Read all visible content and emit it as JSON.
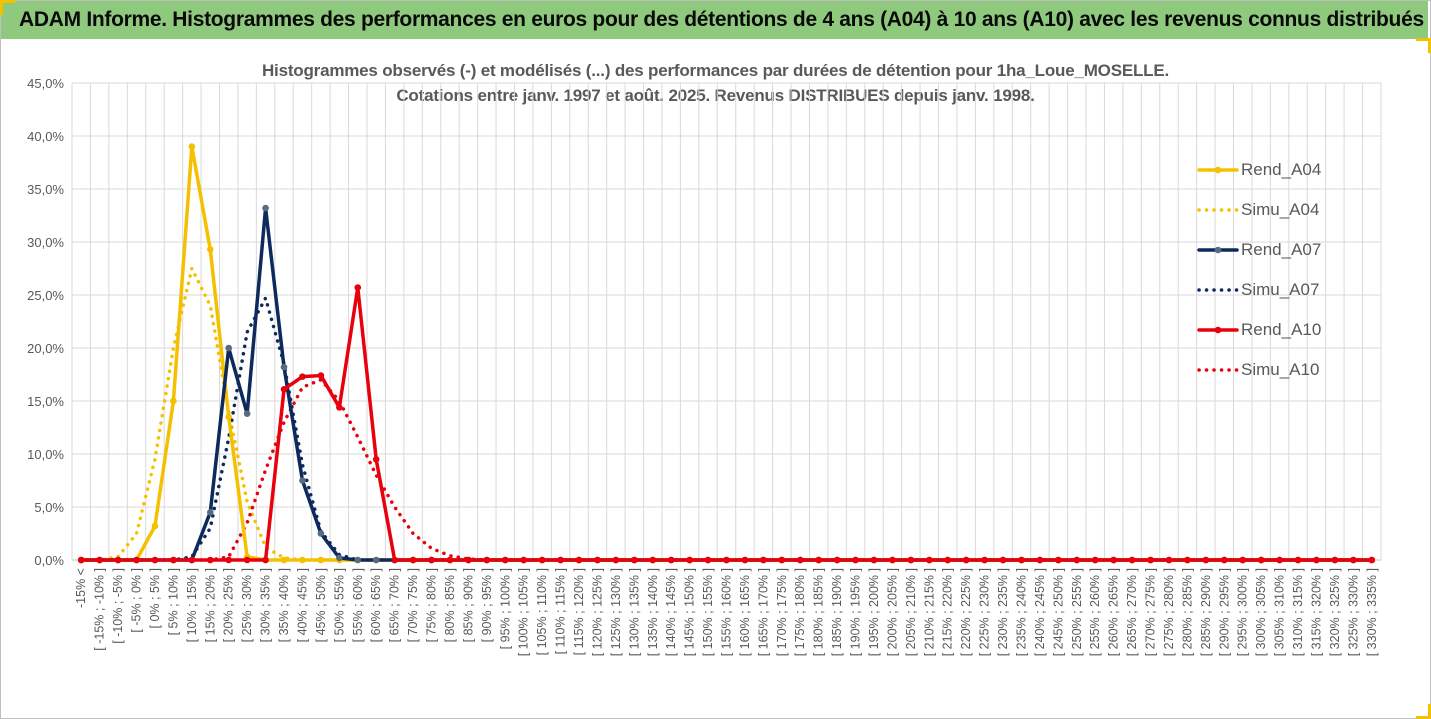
{
  "banner": {
    "title": "ADAM Informe. Histogrammes des performances en euros pour des détentions de 4 ans (A04) à 10 ans (A10) avec les revenus connus distribués"
  },
  "colors": {
    "banner_bg": "#8fc97e",
    "A04": "#f5c000",
    "A07": "#0e2a5c",
    "A10": "#e8000d",
    "A07_marker": "#5a6b80",
    "grid": "#d9d9d9",
    "text": "#595959"
  },
  "chart_data": {
    "type": "line",
    "title_line1": "Histogrammes observés (-) et modélisés (...) des performances par durées de détention pour 1ha_Loue_MOSELLE.",
    "title_line2": "Cotations entre janv. 1997 et août. 2025. Revenus DISTRIBUES depuis janv. 1998.",
    "ylim": [
      0,
      45
    ],
    "yticks": [
      "0,0%",
      "5,0%",
      "10,0%",
      "15,0%",
      "20,0%",
      "25,0%",
      "30,0%",
      "35,0%",
      "40,0%",
      "45,0%"
    ],
    "grid": true,
    "legend_position": "right",
    "categories": [
      "-15% <",
      "[ -15% ; -10% ]",
      "[ -10% ; -5% ]",
      "[ -5% ; 0% ]",
      "[ 0% ; 5% ]",
      "[ 5% ; 10% ]",
      "[ 10% ; 15% ]",
      "[ 15% ; 20% ]",
      "[ 20% ; 25% ]",
      "[ 25% ; 30% ]",
      "[ 30% ; 35% ]",
      "[ 35% ; 40% ]",
      "[ 40% ; 45% ]",
      "[ 45% ; 50% ]",
      "[ 50% ; 55% ]",
      "[ 55% ; 60% ]",
      "[ 60% ; 65% ]",
      "[ 65% ; 70% ]",
      "[ 70% ; 75% ]",
      "[ 75% ; 80% ]",
      "[ 80% ; 85% ]",
      "[ 85% ; 90% ]",
      "[ 90% ; 95% ]",
      "[ 95% ; 100% ]",
      "[ 100% ; 105% ]",
      "[ 105% ; 110% ]",
      "[ 110% ; 115% ]",
      "[ 115% ; 120% ]",
      "[ 120% ; 125% ]",
      "[ 125% ; 130% ]",
      "[ 130% ; 135% ]",
      "[ 135% ; 140% ]",
      "[ 140% ; 145% ]",
      "[ 145% ; 150% ]",
      "[ 150% ; 155% ]",
      "[ 155% ; 160% ]",
      "[ 160% ; 165% ]",
      "[ 165% ; 170% ]",
      "[ 170% ; 175% ]",
      "[ 175% ; 180% ]",
      "[ 180% ; 185% ]",
      "[ 185% ; 190% ]",
      "[ 190% ; 195% ]",
      "[ 195% ; 200% ]",
      "[ 200% ; 205% ]",
      "[ 205% ; 210% ]",
      "[ 210% ; 215% ]",
      "[ 215% ; 220% ]",
      "[ 220% ; 225% ]",
      "[ 225% ; 230% ]",
      "[ 230% ; 235% ]",
      "[ 235% ; 240% ]",
      "[ 240% ; 245% ]",
      "[ 245% ; 250% ]",
      "[ 250% ; 255% ]",
      "[ 255% ; 260% ]",
      "[ 260% ; 265% ]",
      "[ 265% ; 270% ]",
      "[ 270% ; 275% ]",
      "[ 275% ; 280% ]",
      "[ 280% ; 285% ]",
      "[ 285% ; 290% ]",
      "[ 290% ; 295% ]",
      "[ 295% ; 300% ]",
      "[ 300% ; 305% ]",
      "[ 305% ; 310% ]",
      "[ 310% ; 315% ]",
      "[ 315% ; 320% ]",
      "[ 320% ; 325% ]",
      "[ 325% ; 330% ]",
      "[ 330% ; 335% ]"
    ],
    "series": [
      {
        "name": "Rend_A04",
        "style": "solid",
        "color": "#f5c000",
        "values": [
          0,
          0,
          0,
          0,
          3.2,
          15,
          39,
          29.3,
          13.5,
          0.3,
          0,
          0,
          0,
          0,
          0,
          0,
          0,
          0,
          0,
          0,
          0,
          0,
          0,
          0,
          0,
          0,
          0,
          0,
          0,
          0,
          0,
          0,
          0,
          0,
          0,
          0,
          0,
          0,
          0,
          0,
          0,
          0,
          0,
          0,
          0,
          0,
          0,
          0,
          0,
          0,
          0,
          0,
          0,
          0,
          0,
          0,
          0,
          0,
          0,
          0,
          0,
          0,
          0,
          0,
          0,
          0,
          0,
          0,
          0,
          0,
          0
        ]
      },
      {
        "name": "Simu_A04",
        "style": "dotted",
        "color": "#f5c000",
        "values": [
          0,
          0,
          0.3,
          2.5,
          9.5,
          20,
          27.5,
          24,
          14,
          5.5,
          1.2,
          0.2,
          0,
          0,
          0,
          0,
          0,
          0,
          0,
          0,
          0,
          0,
          0,
          0,
          0,
          0,
          0,
          0,
          0,
          0,
          0,
          0,
          0,
          0,
          0,
          0,
          0,
          0,
          0,
          0,
          0,
          0,
          0,
          0,
          0,
          0,
          0,
          0,
          0,
          0,
          0,
          0,
          0,
          0,
          0,
          0,
          0,
          0,
          0,
          0,
          0,
          0,
          0,
          0,
          0,
          0,
          0,
          0,
          0,
          0,
          0
        ]
      },
      {
        "name": "Rend_A07",
        "style": "solid",
        "color": "#0e2a5c",
        "values": [
          0,
          0,
          0,
          0,
          0,
          0,
          0,
          4.5,
          20,
          13.8,
          33.2,
          18.2,
          7.5,
          2.5,
          0.2,
          0,
          0,
          0,
          0,
          0,
          0,
          0,
          0,
          0,
          0,
          0,
          0,
          0,
          0,
          0,
          0,
          0,
          0,
          0,
          0,
          0,
          0,
          0,
          0,
          0,
          0,
          0,
          0,
          0,
          0,
          0,
          0,
          0,
          0,
          0,
          0,
          0,
          0,
          0,
          0,
          0,
          0,
          0,
          0,
          0,
          0,
          0,
          0,
          0,
          0,
          0,
          0,
          0,
          0,
          0,
          0
        ]
      },
      {
        "name": "Simu_A07",
        "style": "dotted",
        "color": "#0e2a5c",
        "values": [
          0,
          0,
          0,
          0,
          0,
          0,
          0.3,
          3,
          11.5,
          21.5,
          24.7,
          18.5,
          9,
          2.7,
          0.5,
          0,
          0,
          0,
          0,
          0,
          0,
          0,
          0,
          0,
          0,
          0,
          0,
          0,
          0,
          0,
          0,
          0,
          0,
          0,
          0,
          0,
          0,
          0,
          0,
          0,
          0,
          0,
          0,
          0,
          0,
          0,
          0,
          0,
          0,
          0,
          0,
          0,
          0,
          0,
          0,
          0,
          0,
          0,
          0,
          0,
          0,
          0,
          0,
          0,
          0,
          0,
          0,
          0,
          0,
          0,
          0
        ]
      },
      {
        "name": "Rend_A10",
        "style": "solid",
        "color": "#e8000d",
        "values": [
          0,
          0,
          0,
          0,
          0,
          0,
          0,
          0,
          0,
          0,
          0,
          16.1,
          17.3,
          17.4,
          14.4,
          25.7,
          9.5,
          0,
          0,
          0,
          0,
          0,
          0,
          0,
          0,
          0,
          0,
          0,
          0,
          0,
          0,
          0,
          0,
          0,
          0,
          0,
          0,
          0,
          0,
          0,
          0,
          0,
          0,
          0,
          0,
          0,
          0,
          0,
          0,
          0,
          0,
          0,
          0,
          0,
          0,
          0,
          0,
          0,
          0,
          0,
          0,
          0,
          0,
          0,
          0,
          0,
          0,
          0,
          0,
          0,
          0
        ]
      },
      {
        "name": "Simu_A10",
        "style": "dotted",
        "color": "#e8000d",
        "values": [
          0,
          0,
          0,
          0,
          0,
          0,
          0,
          0,
          0.3,
          3.5,
          8.5,
          13,
          16.3,
          17,
          15,
          11.6,
          8,
          5,
          2.5,
          1.1,
          0.4,
          0.1,
          0,
          0,
          0,
          0,
          0,
          0,
          0,
          0,
          0,
          0,
          0,
          0,
          0,
          0,
          0,
          0,
          0,
          0,
          0,
          0,
          0,
          0,
          0,
          0,
          0,
          0,
          0,
          0,
          0,
          0,
          0,
          0,
          0,
          0,
          0,
          0,
          0,
          0,
          0,
          0,
          0,
          0,
          0,
          0,
          0,
          0,
          0,
          0,
          0
        ]
      }
    ]
  }
}
